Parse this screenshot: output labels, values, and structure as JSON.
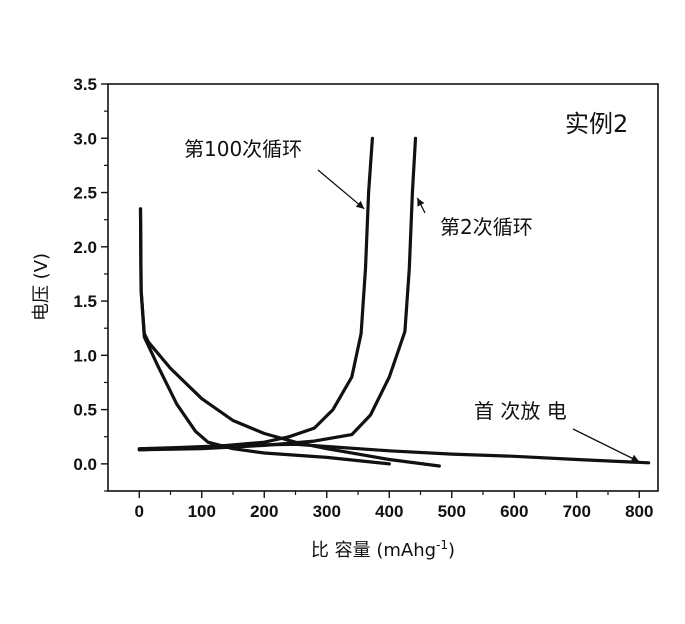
{
  "chart_data": {
    "type": "line",
    "title": "",
    "xlabel": "比 容量 (mAhg",
    "xlabel_sup": "-1",
    "xlabel_end": ")",
    "ylabel": "电压 (V)",
    "xlim": [
      -50,
      830
    ],
    "ylim": [
      -0.25,
      3.5
    ],
    "xticks": [
      0,
      100,
      200,
      300,
      400,
      500,
      600,
      700,
      800
    ],
    "xtick_labels": [
      "0",
      "100",
      "200",
      "300",
      "400",
      "500",
      "600",
      "700",
      "800"
    ],
    "yticks": [
      0.0,
      0.5,
      1.0,
      1.5,
      2.0,
      2.5,
      3.0,
      3.5
    ],
    "ytick_labels": [
      "0.0",
      "0.5",
      "1.0",
      "1.5",
      "2.0",
      "2.5",
      "3.0",
      "3.5"
    ],
    "grid": false,
    "legend": "none",
    "line_color": "#111111",
    "panel_tag": "实例2",
    "annotations": [
      {
        "text": "第100次循环",
        "x": 360,
        "y": 2.35,
        "series": "第100次循环"
      },
      {
        "text": "第2次循环",
        "x": 445,
        "y": 2.45,
        "series": "第2次循环"
      },
      {
        "text": "首 次放 电",
        "x": 800,
        "y": 0.02,
        "series": "首次放电"
      }
    ],
    "series": [
      {
        "name": "首次放电",
        "x": [
          0,
          60,
          150,
          250,
          300,
          400,
          500,
          600,
          700,
          815
        ],
        "y": [
          0.14,
          0.15,
          0.17,
          0.18,
          0.16,
          0.12,
          0.09,
          0.07,
          0.04,
          0.01
        ]
      },
      {
        "name": "第2次循环 放电",
        "x": [
          2,
          3,
          8,
          15,
          50,
          100,
          150,
          200,
          250,
          300,
          350,
          400,
          480
        ],
        "y": [
          2.35,
          1.6,
          1.2,
          1.12,
          0.88,
          0.6,
          0.4,
          0.28,
          0.2,
          0.14,
          0.09,
          0.04,
          -0.02
        ]
      },
      {
        "name": "第2次循环 充电",
        "x": [
          0,
          100,
          200,
          280,
          340,
          370,
          400,
          425,
          432,
          437,
          442
        ],
        "y": [
          0.13,
          0.14,
          0.17,
          0.21,
          0.27,
          0.45,
          0.8,
          1.22,
          1.8,
          2.5,
          3.0
        ]
      },
      {
        "name": "第100次循环 放电",
        "x": [
          2,
          3,
          8,
          30,
          60,
          90,
          110,
          150,
          200,
          300,
          400
        ],
        "y": [
          2.35,
          1.6,
          1.17,
          0.9,
          0.55,
          0.3,
          0.2,
          0.14,
          0.1,
          0.06,
          0.0
        ]
      },
      {
        "name": "第100次循环 充电",
        "x": [
          0,
          100,
          200,
          240,
          280,
          310,
          340,
          355,
          362,
          367,
          373
        ],
        "y": [
          0.13,
          0.15,
          0.2,
          0.25,
          0.33,
          0.5,
          0.8,
          1.2,
          1.8,
          2.5,
          3.0
        ]
      }
    ]
  }
}
